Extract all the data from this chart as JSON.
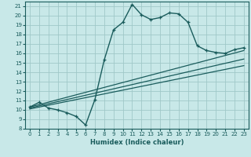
{
  "title": "",
  "xlabel": "Humidex (Indice chaleur)",
  "bg_color": "#c8e8e8",
  "line_color": "#1a5c5c",
  "grid_color": "#a0c8c8",
  "xlim": [
    -0.5,
    23.5
  ],
  "ylim": [
    8,
    21.5
  ],
  "xticks": [
    0,
    1,
    2,
    3,
    4,
    5,
    6,
    7,
    8,
    9,
    10,
    11,
    12,
    13,
    14,
    15,
    16,
    17,
    18,
    19,
    20,
    21,
    22,
    23
  ],
  "yticks": [
    8,
    9,
    10,
    11,
    12,
    13,
    14,
    15,
    16,
    17,
    18,
    19,
    20,
    21
  ],
  "curve1_x": [
    0,
    1,
    2,
    3,
    4,
    5,
    6,
    7,
    8,
    9,
    10,
    11,
    12,
    13,
    14,
    15,
    16,
    17,
    18,
    19,
    20,
    21,
    22,
    23
  ],
  "curve1_y": [
    10.3,
    10.8,
    10.2,
    10.0,
    9.7,
    9.3,
    8.4,
    11.1,
    15.3,
    18.5,
    19.3,
    21.2,
    20.1,
    19.6,
    19.8,
    20.3,
    20.2,
    19.3,
    16.8,
    16.3,
    16.1,
    16.0,
    16.4,
    16.6
  ],
  "line2_x": [
    0,
    23
  ],
  "line2_y": [
    10.3,
    16.3
  ],
  "line3_x": [
    0,
    23
  ],
  "line3_y": [
    10.2,
    15.4
  ],
  "line4_x": [
    0,
    23
  ],
  "line4_y": [
    10.1,
    14.7
  ]
}
